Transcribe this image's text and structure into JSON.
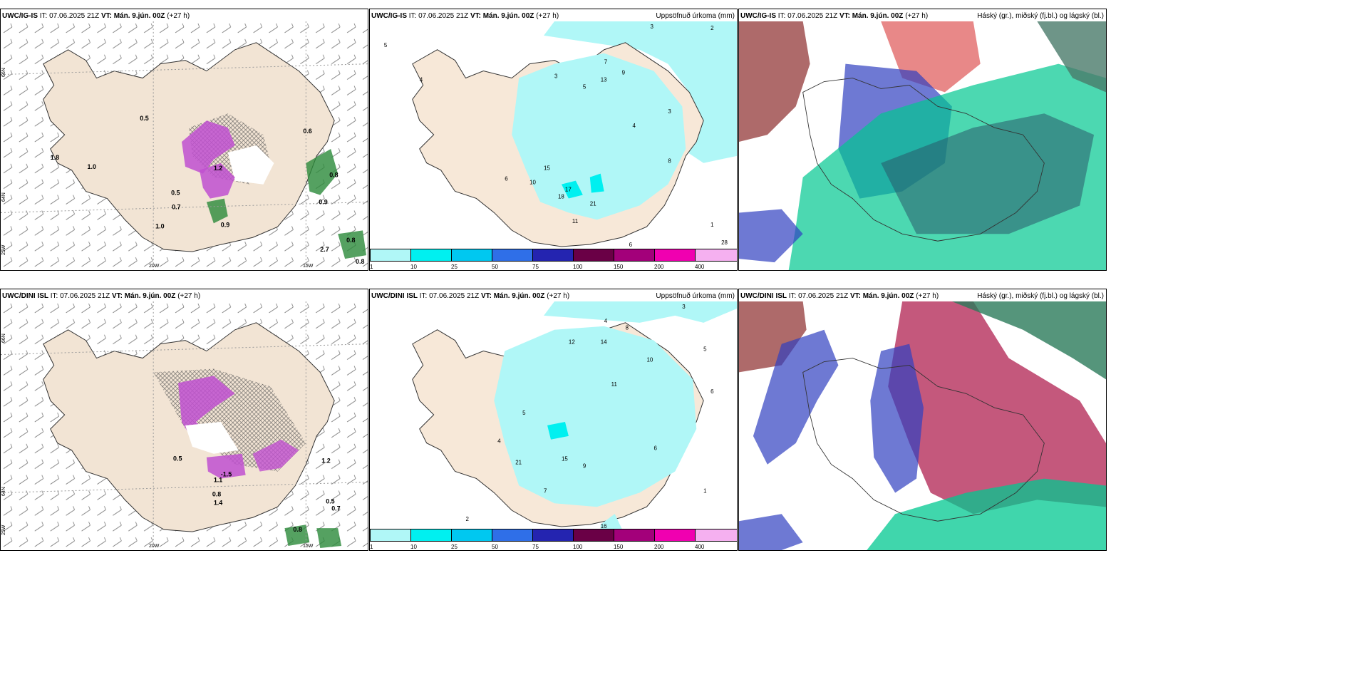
{
  "panels": [
    {
      "title_model": "UWC/IG-IS",
      "title_rest": " IT: 07.06.2025 21Z ",
      "title_vt": "VT: Mán. 9.jún. 00Z",
      "title_lead": " (+27 h)",
      "right_title": ""
    },
    {
      "title_model": "UWC/IG-IS",
      "title_rest": " IT: 07.06.2025 21Z ",
      "title_vt": "VT: Mán. 9.jún. 00Z",
      "title_lead": " (+27 h)",
      "right_title": "Uppsöfnuð úrkoma (mm)"
    },
    {
      "title_model": "UWC/IG-IS",
      "title_rest": " IT: 07.06.2025 21Z ",
      "title_vt": "VT: Mán. 9.jún. 00Z",
      "title_lead": " (+27 h)",
      "right_title": "Háský (gr.), miðský (fj.bl.) og lágský (bl.)"
    },
    {
      "title_model": "UWC/DINI ISL",
      "title_rest": " IT: 07.06.2025 21Z ",
      "title_vt": "VT: Mán. 9.jún. 00Z",
      "title_lead": " (+27 h)",
      "right_title": ""
    },
    {
      "title_model": "UWC/DINI ISL",
      "title_rest": " IT: 07.06.2025 21Z ",
      "title_vt": "VT: Mán. 9.jún. 00Z",
      "title_lead": " (+27 h)",
      "right_title": "Uppsöfnuð úrkoma (mm)"
    },
    {
      "title_model": "UWC/DINI ISL",
      "title_rest": " IT: 07.06.2025 21Z ",
      "title_vt": "VT: Mán. 9.jún. 00Z",
      "title_lead": " (+27 h)",
      "right_title": "Háský (gr.), miðský (fj.bl.) og lágský (bl.)"
    }
  ],
  "axis_labels": {
    "lon_20w": "20W",
    "lon_15w": "15W",
    "lat_66n": "66N",
    "lat_64n": "64N",
    "lat_25w": "25W"
  },
  "colorbar": {
    "labels": [
      "1",
      "10",
      "25",
      "50",
      "75",
      "100",
      "150",
      "200",
      "400"
    ],
    "colors": [
      "#b0f7f7",
      "#00f0f0",
      "#00c8f0",
      "#2f6fe8",
      "#2424b0",
      "#6a0046",
      "#a3007a",
      "#f000b0",
      "#f5b0f0"
    ]
  },
  "map_labels": {
    "p1": [
      "0.5",
      "0.6",
      "1.8",
      "1.0",
      "0.7",
      "1.0",
      "0.9",
      "0.9",
      "0.8",
      "2.7",
      "0.8",
      "0.8",
      "0.5",
      "1.2"
    ],
    "p2": [
      "5",
      "4",
      "3",
      "2",
      "1",
      "3",
      "5",
      "7",
      "9",
      "13",
      "15",
      "10",
      "6",
      "21",
      "17",
      "18",
      "11",
      "8",
      "4",
      "3",
      "28",
      "6"
    ],
    "p4": [
      "0.5",
      "1.2",
      "0.5",
      "0.7",
      "0.8",
      "1.4",
      "0.8",
      "-1.5",
      "1.1"
    ],
    "p5": [
      "3",
      "4",
      "8",
      "12",
      "14",
      "10",
      "5",
      "6",
      "16",
      "15",
      "21",
      "2",
      "1",
      "4",
      "5",
      "7",
      "6",
      "9",
      "11"
    ]
  }
}
